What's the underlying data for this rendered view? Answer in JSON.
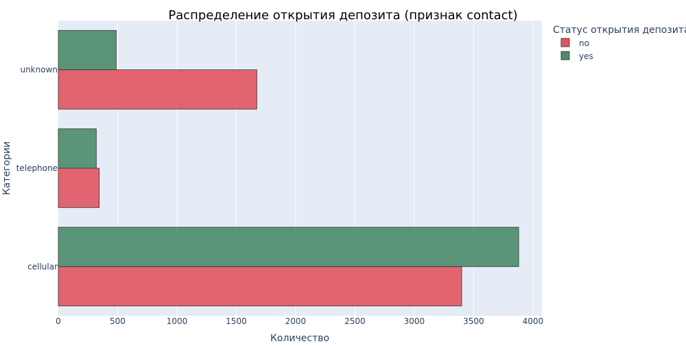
{
  "chart_data": {
    "type": "bar",
    "orientation": "horizontal",
    "title": "Распределение открытия депозита (признак contact)",
    "xlabel": "Количество",
    "ylabel": "Категории",
    "categories": [
      "cellular",
      "telephone",
      "unknown"
    ],
    "series": [
      {
        "name": "no",
        "values": [
          3400,
          345,
          1673
        ],
        "color": "#e15562"
      },
      {
        "name": "yes",
        "values": [
          3880,
          320,
          488
        ],
        "color": "#4a8c6b"
      }
    ],
    "xlim": [
      0,
      4076
    ],
    "xticks": [
      0,
      500,
      1000,
      1500,
      2000,
      2500,
      3000,
      3500,
      4000
    ],
    "legend": {
      "title": "Статус открытия депозита",
      "placement": "top-right"
    },
    "grid": true,
    "background": "#e5ecf6"
  }
}
